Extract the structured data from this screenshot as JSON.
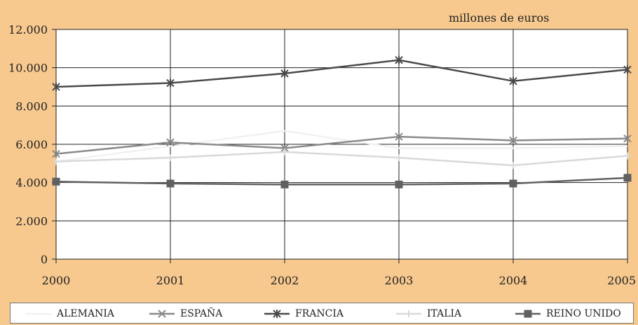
{
  "chart_data": {
    "type": "line",
    "unit_label": "millones de euros",
    "categories": [
      "2000",
      "2001",
      "2002",
      "2003",
      "2004",
      "2005"
    ],
    "ylim": [
      0,
      12000
    ],
    "yticks": [
      0,
      2000,
      4000,
      6000,
      8000,
      10000,
      12000
    ],
    "ytick_labels": [
      "0",
      "2.000",
      "4.000",
      "6.000",
      "8.000",
      "10.000",
      "12.000"
    ],
    "grid": true,
    "legend_position": "bottom",
    "series": [
      {
        "name": "ALEMANIA",
        "color": "#f1f1f1",
        "marker": "none",
        "values": [
          5100,
          5900,
          6700,
          5800,
          5800,
          5900
        ]
      },
      {
        "name": "ESPAÑA",
        "color": "#8a8a8a",
        "marker": "x",
        "values": [
          5500,
          6100,
          5800,
          6400,
          6200,
          6300
        ]
      },
      {
        "name": "FRANCIA",
        "color": "#4a4a4a",
        "marker": "star",
        "values": [
          9000,
          9200,
          9700,
          10400,
          9300,
          9900
        ]
      },
      {
        "name": "ITALIA",
        "color": "#d9d9d9",
        "marker": "plus",
        "values": [
          5100,
          5300,
          5600,
          5300,
          4900,
          5400
        ]
      },
      {
        "name": "REINO UNIDO",
        "color": "#606060",
        "marker": "square",
        "values": [
          4050,
          3950,
          3900,
          3900,
          3950,
          4250
        ]
      }
    ]
  }
}
